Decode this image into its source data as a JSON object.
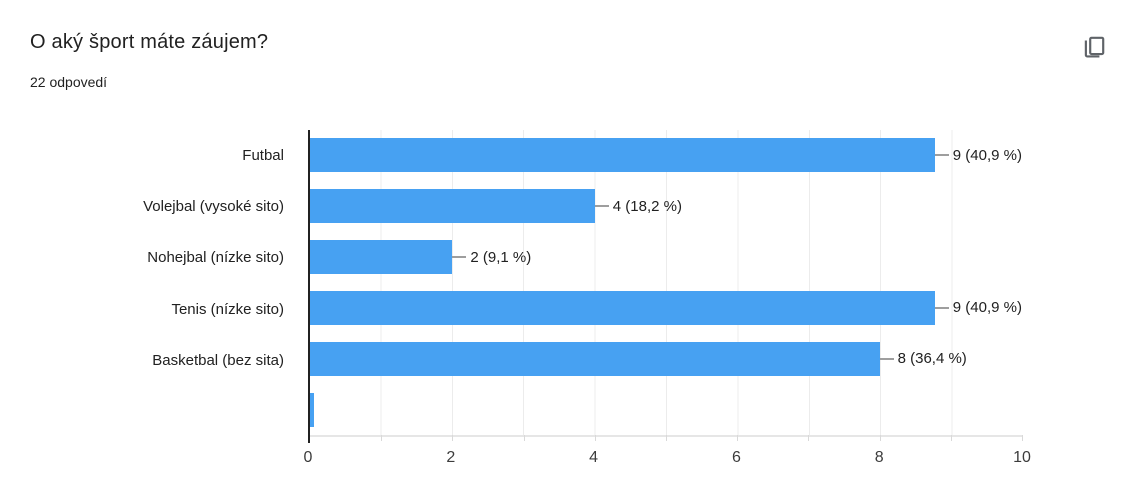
{
  "header": {
    "title": "O aký šport máte záujem?",
    "responses_count": "22 odpovedí",
    "copy_icon": "copy-chart-icon"
  },
  "chart_data": {
    "type": "bar",
    "orientation": "horizontal",
    "title": "O aký šport máte záujem?",
    "subtitle": "22 odpovedí",
    "categories": [
      "Futbal",
      "Volejbal (vysoké sito)",
      "Nohejbal (nízke sito)",
      "Tenis (nízke sito)",
      "Basketbal (bez sita)",
      ""
    ],
    "rows": [
      {
        "label": "Futbal",
        "value": 9,
        "value_label": "9 (40,9 %)"
      },
      {
        "label": "Volejbal (vysoké sito)",
        "value": 4,
        "value_label": "4 (18,2 %)"
      },
      {
        "label": "Nohejbal (nízke sito)",
        "value": 2,
        "value_label": "2 (9,1 %)"
      },
      {
        "label": "Tenis (nízke sito)",
        "value": 9,
        "value_label": "9 (40,9 %)"
      },
      {
        "label": "Basketbal (bez sita)",
        "value": 8,
        "value_label": "8 (36,4 %)"
      },
      {
        "label": "",
        "value": 0,
        "value_label": "",
        "min_sliver": true
      }
    ],
    "xlabel": "",
    "ylabel": "",
    "axis": {
      "min": 0,
      "max": 10,
      "ticks": [
        0,
        2,
        4,
        6,
        8,
        10
      ],
      "minor_grid_every": 1
    },
    "grid": true,
    "legend": "none"
  },
  "colors": {
    "bar": "#47a1f2",
    "axis": "#212121",
    "grid": "#ececec",
    "baseline": "#e6e6e6",
    "leader": "#9e9e9e",
    "icon": "#5f6368"
  }
}
